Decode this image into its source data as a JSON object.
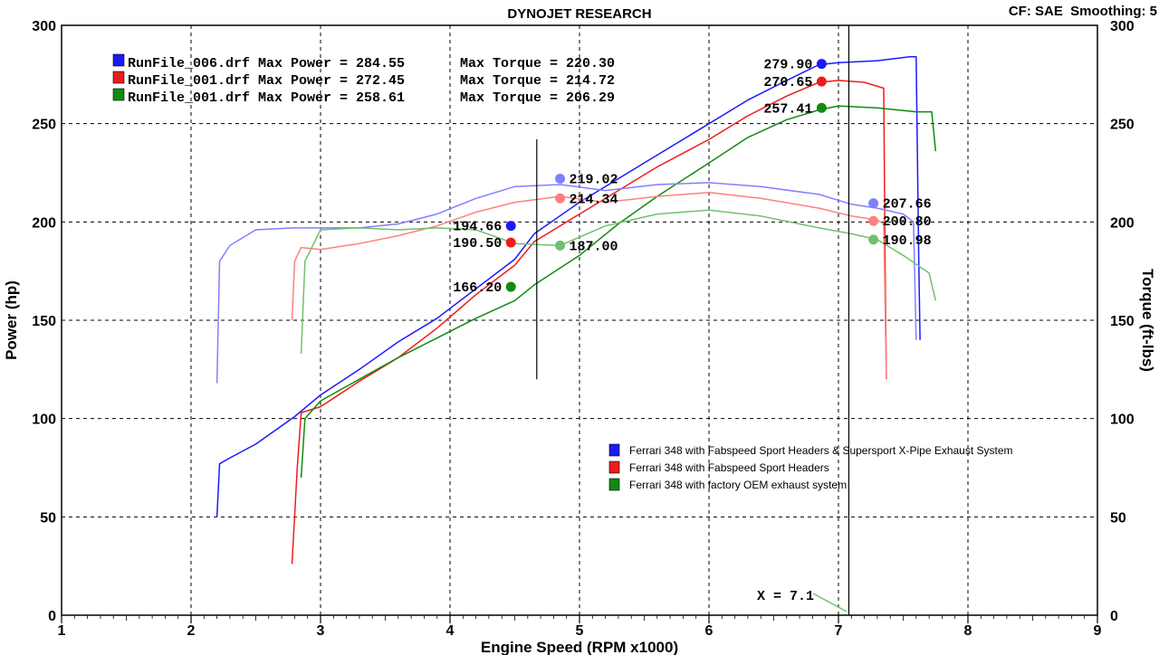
{
  "header": {
    "title": "DYNOJET RESEARCH",
    "settings": "CF: SAE  Smoothing: 5"
  },
  "colors": {
    "blue": "#1a1aff",
    "red": "#ee1c1c",
    "green": "#118a11",
    "blue_light": "#8080ff",
    "red_light": "#ff8080",
    "green_light": "#70c070"
  },
  "chart_data": {
    "type": "line",
    "xlabel": "Engine Speed (RPM x1000)",
    "ylabel_left": "Power (hp)",
    "ylabel_right": "Torque (ft-lbs)",
    "xlim": [
      1,
      9
    ],
    "ylim": [
      0,
      300
    ],
    "x_ticks": [
      "1",
      "2",
      "3",
      "4",
      "5",
      "6",
      "7",
      "8",
      "9"
    ],
    "y_ticks": [
      "0",
      "50",
      "100",
      "150",
      "200",
      "250",
      "300"
    ],
    "grid": true,
    "runs": [
      {
        "label": "RunFile_006.drf Max Power = 284.55",
        "torque": "Max Torque = 220.30",
        "color": "blue"
      },
      {
        "label": "RunFile_001.drf Max Power = 272.45",
        "torque": "Max Torque = 214.72",
        "color": "red"
      },
      {
        "label": "RunFile_001.drf Max Power = 258.61",
        "torque": "Max Torque = 206.29",
        "color": "green"
      }
    ],
    "legend": [
      {
        "name": "Ferrari 348 with Fabspeed Sport Headers & Supersport X-Pipe Exhaust System",
        "color": "blue"
      },
      {
        "name": "Ferrari 348 with Fabspeed Sport Headers",
        "color": "red"
      },
      {
        "name": "Ferrari 348 with factory OEM exhaust system",
        "color": "green"
      }
    ],
    "series": [
      {
        "kind": "power",
        "color": "blue",
        "points": [
          [
            2.2,
            50
          ],
          [
            2.22,
            77
          ],
          [
            2.3,
            80
          ],
          [
            2.5,
            87
          ],
          [
            2.8,
            101
          ],
          [
            3.0,
            112
          ],
          [
            3.3,
            125
          ],
          [
            3.6,
            139
          ],
          [
            3.9,
            151
          ],
          [
            4.2,
            166
          ],
          [
            4.5,
            181
          ],
          [
            4.65,
            194
          ],
          [
            5.0,
            210
          ],
          [
            5.3,
            222
          ],
          [
            5.6,
            234
          ],
          [
            6.0,
            250
          ],
          [
            6.3,
            262
          ],
          [
            6.6,
            272
          ],
          [
            6.85,
            280
          ],
          [
            7.0,
            281
          ],
          [
            7.3,
            282
          ],
          [
            7.55,
            284
          ],
          [
            7.6,
            284
          ],
          [
            7.62,
            180
          ],
          [
            7.63,
            140
          ]
        ]
      },
      {
        "kind": "power",
        "color": "red",
        "points": [
          [
            2.78,
            26
          ],
          [
            2.82,
            75
          ],
          [
            2.85,
            103
          ],
          [
            3.0,
            106
          ],
          [
            3.3,
            119
          ],
          [
            3.6,
            131
          ],
          [
            3.9,
            146
          ],
          [
            4.2,
            163
          ],
          [
            4.5,
            178
          ],
          [
            4.65,
            190
          ],
          [
            5.0,
            204
          ],
          [
            5.3,
            216
          ],
          [
            5.6,
            228
          ],
          [
            6.0,
            242
          ],
          [
            6.3,
            254
          ],
          [
            6.6,
            264
          ],
          [
            6.85,
            271
          ],
          [
            7.0,
            272
          ],
          [
            7.2,
            271
          ],
          [
            7.35,
            268
          ],
          [
            7.36,
            180
          ],
          [
            7.37,
            120
          ]
        ]
      },
      {
        "kind": "power",
        "color": "green",
        "points": [
          [
            2.85,
            70
          ],
          [
            2.88,
            100
          ],
          [
            3.0,
            109
          ],
          [
            3.3,
            120
          ],
          [
            3.6,
            131
          ],
          [
            3.9,
            141
          ],
          [
            4.2,
            151
          ],
          [
            4.5,
            160
          ],
          [
            4.65,
            168
          ],
          [
            5.0,
            183
          ],
          [
            5.3,
            199
          ],
          [
            5.6,
            213
          ],
          [
            6.0,
            230
          ],
          [
            6.3,
            243
          ],
          [
            6.6,
            252
          ],
          [
            6.85,
            257
          ],
          [
            7.0,
            259
          ],
          [
            7.3,
            258
          ],
          [
            7.6,
            256
          ],
          [
            7.72,
            256
          ],
          [
            7.75,
            236
          ]
        ]
      },
      {
        "kind": "torque",
        "color": "blue_light",
        "points": [
          [
            2.2,
            118
          ],
          [
            2.22,
            180
          ],
          [
            2.3,
            188
          ],
          [
            2.5,
            196
          ],
          [
            2.8,
            197
          ],
          [
            3.0,
            197
          ],
          [
            3.3,
            197
          ],
          [
            3.6,
            199
          ],
          [
            3.9,
            204
          ],
          [
            4.2,
            212
          ],
          [
            4.5,
            218
          ],
          [
            4.85,
            219
          ],
          [
            5.2,
            216
          ],
          [
            5.6,
            219
          ],
          [
            6.0,
            220
          ],
          [
            6.4,
            218
          ],
          [
            6.85,
            214
          ],
          [
            7.1,
            209
          ],
          [
            7.3,
            207
          ],
          [
            7.5,
            204
          ],
          [
            7.58,
            200
          ],
          [
            7.6,
            140
          ]
        ]
      },
      {
        "kind": "torque",
        "color": "red_light",
        "points": [
          [
            2.78,
            150
          ],
          [
            2.8,
            180
          ],
          [
            2.85,
            187
          ],
          [
            3.0,
            186
          ],
          [
            3.3,
            189
          ],
          [
            3.6,
            193
          ],
          [
            3.9,
            198
          ],
          [
            4.2,
            205
          ],
          [
            4.5,
            210
          ],
          [
            4.85,
            213
          ],
          [
            5.2,
            210
          ],
          [
            5.6,
            213
          ],
          [
            6.0,
            215
          ],
          [
            6.4,
            212
          ],
          [
            6.85,
            207
          ],
          [
            7.1,
            203
          ],
          [
            7.3,
            201
          ],
          [
            7.35,
            199
          ],
          [
            7.37,
            120
          ]
        ]
      },
      {
        "kind": "torque",
        "color": "green_light",
        "points": [
          [
            2.85,
            133
          ],
          [
            2.88,
            180
          ],
          [
            3.0,
            196
          ],
          [
            3.3,
            197
          ],
          [
            3.6,
            196
          ],
          [
            3.9,
            197
          ],
          [
            4.2,
            196
          ],
          [
            4.5,
            189
          ],
          [
            4.85,
            188
          ],
          [
            5.2,
            198
          ],
          [
            5.6,
            204
          ],
          [
            6.0,
            206
          ],
          [
            6.4,
            203
          ],
          [
            6.85,
            197
          ],
          [
            7.1,
            194
          ],
          [
            7.3,
            191
          ],
          [
            7.5,
            183
          ],
          [
            7.7,
            174
          ],
          [
            7.75,
            160
          ]
        ]
      }
    ],
    "markers": [
      {
        "x": 6.87,
        "y": 280.4,
        "label": "279.90",
        "color": "blue",
        "side": "left"
      },
      {
        "x": 6.87,
        "y": 271.4,
        "label": "270.65",
        "color": "red",
        "side": "left"
      },
      {
        "x": 6.87,
        "y": 258.0,
        "label": "257.41",
        "color": "green",
        "side": "left"
      },
      {
        "x": 4.85,
        "y": 222.0,
        "label": "219.02",
        "color": "blue_light",
        "side": "right"
      },
      {
        "x": 4.85,
        "y": 212.0,
        "label": "214.34",
        "color": "red_light",
        "side": "right"
      },
      {
        "x": 4.85,
        "y": 188.0,
        "label": "187.00",
        "color": "green_light",
        "side": "right"
      },
      {
        "x": 4.47,
        "y": 198.0,
        "label": "194.66",
        "color": "blue",
        "side": "left"
      },
      {
        "x": 4.47,
        "y": 189.5,
        "label": "190.50",
        "color": "red",
        "side": "left"
      },
      {
        "x": 4.47,
        "y": 167.0,
        "label": "166.20",
        "color": "green",
        "side": "left"
      },
      {
        "x": 7.27,
        "y": 209.5,
        "label": "207.66",
        "color": "blue_light",
        "side": "right"
      },
      {
        "x": 7.27,
        "y": 200.5,
        "label": "200.80",
        "color": "red_light",
        "side": "right"
      },
      {
        "x": 7.27,
        "y": 191.0,
        "label": "190.98",
        "color": "green_light",
        "side": "right"
      }
    ],
    "cursor_lines": [
      4.67,
      7.08
    ],
    "cursor_readout": "X = 7.1"
  }
}
